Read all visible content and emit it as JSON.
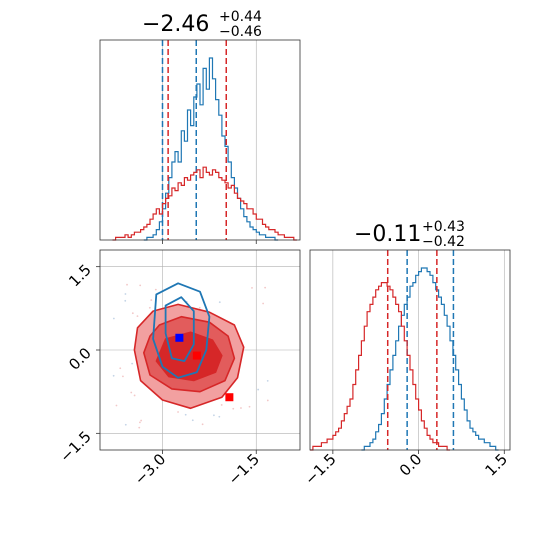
{
  "colors": {
    "blue": "#1f77b4",
    "red": "#d62728",
    "marker_blue": "#0000ff",
    "marker_red": "#ff0000"
  },
  "titles": [
    {
      "main": "−2.46",
      "sup": "+0.44",
      "sub": "−0.46"
    },
    {
      "main": "−0.11",
      "sup": "+0.43",
      "sub": "−0.42"
    }
  ],
  "chart_data": [
    {
      "type": "histogram",
      "panel": "top-left",
      "xlim": [
        -4.0,
        -0.8
      ],
      "grid": true,
      "xticks": [
        -3.0,
        -1.5
      ],
      "series": [
        {
          "color": "#1f77b4",
          "quantile_lines": [
            -3.0,
            -2.46,
            null
          ],
          "bins": {
            "start": -3.3,
            "step": 0.05,
            "counts": [
              0,
              1,
              1,
              2,
              4,
              7,
              12,
              18,
              24,
              30,
              34,
              30,
              42,
              38,
              50,
              44,
              55,
              60,
              52,
              66,
              58,
              70,
              62,
              54,
              48,
              40,
              36,
              30,
              24,
              20,
              16,
              12,
              9,
              7,
              5,
              4,
              3,
              2,
              2,
              1,
              1,
              1,
              0
            ]
          }
        },
        {
          "color": "#d62728",
          "quantile_lines": [
            -2.91,
            null,
            -1.98
          ],
          "bins": {
            "start": -3.8,
            "step": 0.05,
            "counts": [
              0,
              1,
              1,
              1,
              2,
              1,
              2,
              3,
              3,
              4,
              5,
              6,
              8,
              10,
              12,
              10,
              14,
              16,
              17,
              20,
              19,
              22,
              21,
              24,
              23,
              25,
              26,
              27,
              24,
              28,
              26,
              25,
              27,
              26,
              24,
              23,
              22,
              20,
              21,
              18,
              16,
              15,
              14,
              12,
              12,
              10,
              8,
              8,
              6,
              5,
              4,
              4,
              3,
              2,
              2,
              1,
              1,
              1,
              0
            ]
          }
        }
      ]
    },
    {
      "type": "histogram",
      "panel": "bottom-right",
      "xlim": [
        -1.9,
        1.6
      ],
      "grid": true,
      "xticks": [
        -1.5,
        0.0,
        1.5
      ],
      "series": [
        {
          "color": "#1f77b4",
          "quantile_lines": [
            -0.2,
            0.61
          ],
          "bins": {
            "start": -1.0,
            "step": 0.05,
            "counts": [
              0,
              1,
              1,
              2,
              3,
              5,
              7,
              10,
              14,
              18,
              22,
              26,
              30,
              34,
              37,
              40,
              42,
              45,
              46,
              48,
              49,
              50,
              50,
              49,
              48,
              46,
              44,
              42,
              40,
              37,
              34,
              30,
              26,
              22,
              18,
              14,
              11,
              8,
              6,
              5,
              4,
              3,
              3,
              2,
              2,
              1,
              1,
              0
            ]
          }
        },
        {
          "color": "#d62728",
          "quantile_lines": [
            -0.54,
            0.32
          ],
          "bins": {
            "start": -1.9,
            "step": 0.05,
            "counts": [
              0,
              1,
              1,
              1,
              2,
              2,
              3,
              3,
              4,
              5,
              6,
              8,
              10,
              12,
              14,
              18,
              22,
              26,
              30,
              34,
              38,
              40,
              42,
              44,
              45,
              46,
              46,
              45,
              44,
              42,
              40,
              38,
              34,
              30,
              26,
              22,
              18,
              14,
              11,
              8,
              6,
              4,
              3,
              2,
              2,
              1,
              1,
              1,
              0
            ]
          }
        }
      ]
    },
    {
      "type": "contour",
      "panel": "bottom-left",
      "xlim": [
        -4.0,
        -0.8
      ],
      "ylim": [
        -1.8,
        1.8
      ],
      "grid": true,
      "xticks": [
        -3.0,
        -1.5
      ],
      "yticks": [
        -1.5,
        0.0,
        1.5
      ],
      "xtick_labels": [
        "−3.0",
        "−1.5"
      ],
      "ytick_labels": [
        "−1.5",
        "0.0",
        "1.5"
      ],
      "red_outer": [
        [
          -3.15,
          0.7
        ],
        [
          -2.75,
          0.82
        ],
        [
          -2.25,
          0.68
        ],
        [
          -1.85,
          0.45
        ],
        [
          -1.7,
          0.05
        ],
        [
          -1.8,
          -0.5
        ],
        [
          -2.05,
          -0.85
        ],
        [
          -2.55,
          -1.05
        ],
        [
          -3.0,
          -0.9
        ],
        [
          -3.35,
          -0.55
        ],
        [
          -3.45,
          0.0
        ],
        [
          -3.4,
          0.4
        ]
      ],
      "red_mid": [
        [
          -3.05,
          0.45
        ],
        [
          -2.7,
          0.6
        ],
        [
          -2.25,
          0.5
        ],
        [
          -1.95,
          0.25
        ],
        [
          -1.85,
          -0.15
        ],
        [
          -2.0,
          -0.55
        ],
        [
          -2.4,
          -0.75
        ],
        [
          -2.85,
          -0.7
        ],
        [
          -3.2,
          -0.45
        ],
        [
          -3.3,
          -0.05
        ],
        [
          -3.2,
          0.25
        ]
      ],
      "red_inner": [
        [
          -2.95,
          0.2
        ],
        [
          -2.55,
          0.32
        ],
        [
          -2.2,
          0.18
        ],
        [
          -2.05,
          -0.1
        ],
        [
          -2.15,
          -0.4
        ],
        [
          -2.5,
          -0.55
        ],
        [
          -2.9,
          -0.48
        ],
        [
          -3.1,
          -0.2
        ]
      ],
      "blue_outer": [
        [
          -3.1,
          1.0
        ],
        [
          -2.75,
          1.2
        ],
        [
          -2.4,
          1.05
        ],
        [
          -2.25,
          0.6
        ],
        [
          -2.3,
          0.0
        ],
        [
          -2.45,
          -0.4
        ],
        [
          -2.75,
          -0.5
        ],
        [
          -3.0,
          -0.3
        ],
        [
          -3.15,
          0.2
        ]
      ],
      "blue_inner": [
        [
          -2.95,
          0.8
        ],
        [
          -2.7,
          0.95
        ],
        [
          -2.5,
          0.7
        ],
        [
          -2.5,
          0.1
        ],
        [
          -2.65,
          -0.2
        ],
        [
          -2.85,
          -0.15
        ],
        [
          -2.95,
          0.3
        ]
      ],
      "markers": [
        {
          "x": -2.73,
          "y": 0.22,
          "color": "#0000ff"
        },
        {
          "x": -2.45,
          "y": -0.1,
          "color": "#ff0000"
        },
        {
          "x": -1.93,
          "y": -0.85,
          "color": "#ff0000"
        }
      ]
    }
  ],
  "top_hist_xtick_labels": [],
  "right_hist_xtick_labels": [
    "−1.5",
    "0.0",
    "1.5"
  ]
}
